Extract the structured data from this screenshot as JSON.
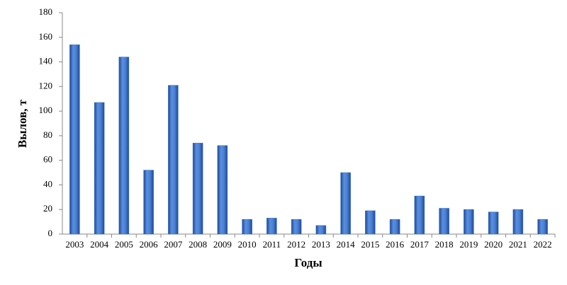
{
  "chart_data": {
    "type": "bar",
    "x_label": "Годы",
    "y_label": "Вылов, т",
    "categories": [
      "2003",
      "2004",
      "2005",
      "2006",
      "2007",
      "2008",
      "2009",
      "2010",
      "2011",
      "2012",
      "2013",
      "2014",
      "2015",
      "2016",
      "2017",
      "2018",
      "2019",
      "2020",
      "2021",
      "2022"
    ],
    "values": [
      154,
      107,
      144,
      52,
      121,
      74,
      72,
      12,
      13,
      12,
      7,
      50,
      19,
      12,
      31,
      21,
      20,
      18,
      20,
      12
    ],
    "color": "#3b6fc6",
    "ylim": [
      0,
      180
    ],
    "yticks": [
      0,
      20,
      40,
      60,
      80,
      100,
      120,
      140,
      160,
      180
    ],
    "grid": false
  }
}
